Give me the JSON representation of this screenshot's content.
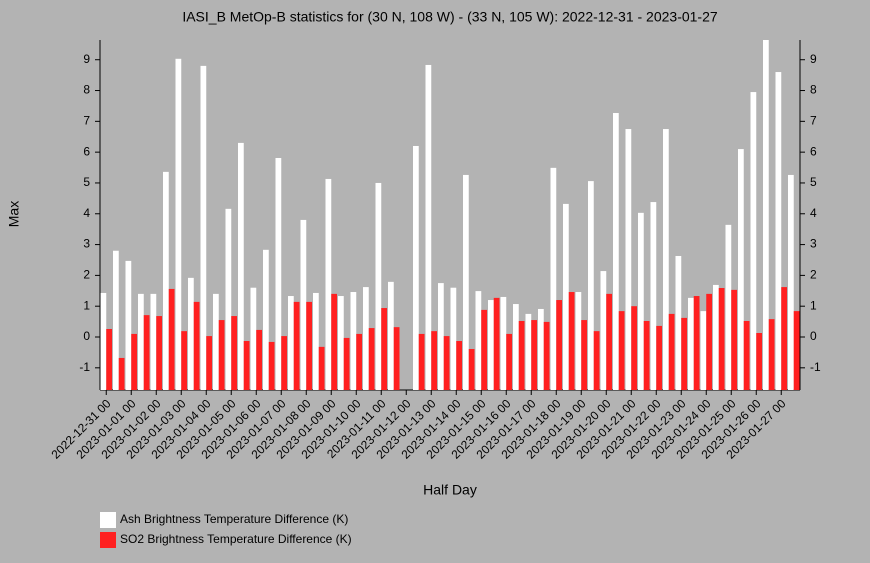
{
  "chart_data": {
    "type": "bar",
    "title": "IASI_B MetOp-B statistics for (30 N, 108 W) - (33 N, 105 W): 2022-12-31 - 2023-01-27",
    "x_label": "Half Day",
    "y_label": "Max",
    "categories": [
      "2022-12-31 00",
      null,
      "2023-01-01 00",
      null,
      "2023-01-02 00",
      null,
      "2023-01-03 00",
      null,
      "2023-01-04 00",
      null,
      "2023-01-05 00",
      null,
      "2023-01-06 00",
      null,
      "2023-01-07 00",
      null,
      "2023-01-08 00",
      null,
      "2023-01-09 00",
      null,
      "2023-01-10 00",
      null,
      "2023-01-11 00",
      null,
      "2023-01-12 00",
      null,
      "2023-01-13 00",
      null,
      "2023-01-14 00",
      null,
      "2023-01-15 00",
      null,
      "2023-01-16 00",
      null,
      "2023-01-17 00",
      null,
      "2023-01-18 00",
      null,
      "2023-01-19 00",
      null,
      "2023-01-20 00",
      null,
      "2023-01-21 00",
      null,
      "2023-01-22 00",
      null,
      "2023-01-23 00",
      null,
      "2023-01-24 00",
      null,
      "2023-01-25 00",
      null,
      "2023-01-26 00",
      null,
      "2023-01-27 00",
      null
    ],
    "series": [
      {
        "name": "Ash Brightness Temperature Difference (K)",
        "color": "#ffffff",
        "values": [
          1.43,
          2.8,
          2.47,
          1.4,
          1.4,
          5.36,
          9.03,
          1.92,
          8.8,
          1.4,
          4.16,
          6.3,
          1.6,
          2.83,
          5.81,
          1.33,
          3.8,
          1.43,
          5.13,
          1.33,
          1.46,
          1.62,
          5.0,
          1.79,
          null,
          6.2,
          8.83,
          1.75,
          1.6,
          5.26,
          1.49,
          1.2,
          1.3,
          1.07,
          0.75,
          0.91,
          5.49,
          4.32,
          1.46,
          5.06,
          2.14,
          7.27,
          6.75,
          4.03,
          4.38,
          6.75,
          2.63,
          1.27,
          0.84,
          1.69,
          3.64,
          6.1,
          7.95,
          9.64,
          8.6,
          5.26
        ]
      },
      {
        "name": "SO2 Brightness Temperature Difference (K)",
        "color": "#ff2020",
        "values": [
          0.26,
          -0.68,
          0.1,
          0.71,
          0.68,
          1.56,
          0.19,
          1.14,
          0.03,
          0.55,
          0.68,
          -0.13,
          0.23,
          -0.16,
          0.03,
          1.14,
          1.14,
          -0.32,
          1.4,
          -0.03,
          0.1,
          0.29,
          0.94,
          0.32,
          null,
          0.1,
          0.19,
          0.03,
          -0.13,
          -0.39,
          0.88,
          1.27,
          0.1,
          0.52,
          0.55,
          0.49,
          1.2,
          1.46,
          0.55,
          0.19,
          1.4,
          0.84,
          1.0,
          0.52,
          0.36,
          0.75,
          0.62,
          1.33,
          1.4,
          1.59,
          1.53,
          0.52,
          0.13,
          0.58,
          1.62,
          0.84
        ]
      }
    ],
    "ylim": [
      -1.72,
      9.64
    ],
    "yticks": [
      -1,
      0,
      1,
      2,
      3,
      4,
      5,
      6,
      7,
      8,
      9
    ],
    "right_axis_labels": true
  }
}
